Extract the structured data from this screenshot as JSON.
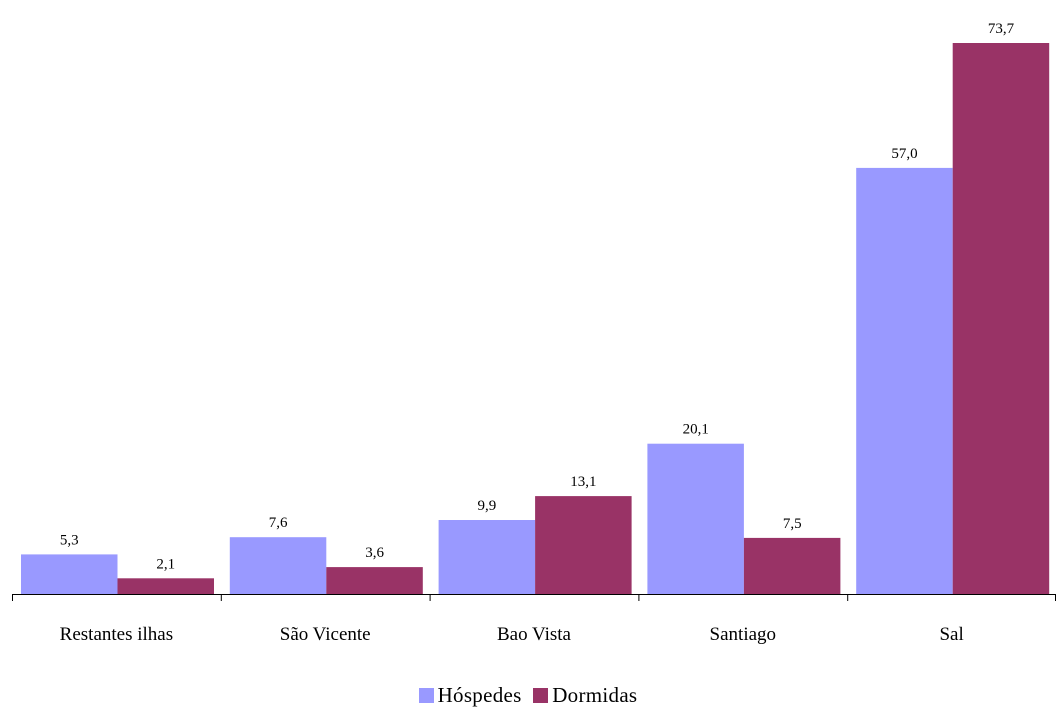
{
  "chart_data": {
    "type": "bar",
    "categories": [
      "Restantes ilhas",
      "São Vicente",
      "Bao Vista",
      "Santiago",
      "Sal"
    ],
    "series": [
      {
        "name": "Hóspedes",
        "values": [
          5.3,
          7.6,
          9.9,
          20.1,
          57.0
        ],
        "labels": [
          "5,3",
          "7,6",
          "9,9",
          "20,1",
          "57,0"
        ],
        "color": "#9999ff"
      },
      {
        "name": "Dormidas",
        "values": [
          2.1,
          3.6,
          13.1,
          7.5,
          73.7
        ],
        "labels": [
          "2,1",
          "3,6",
          "13,1",
          "7,5",
          "73,7"
        ],
        "color": "#993366"
      }
    ],
    "ylim": [
      0,
      75
    ],
    "grid": false,
    "legend_position": "bottom"
  }
}
